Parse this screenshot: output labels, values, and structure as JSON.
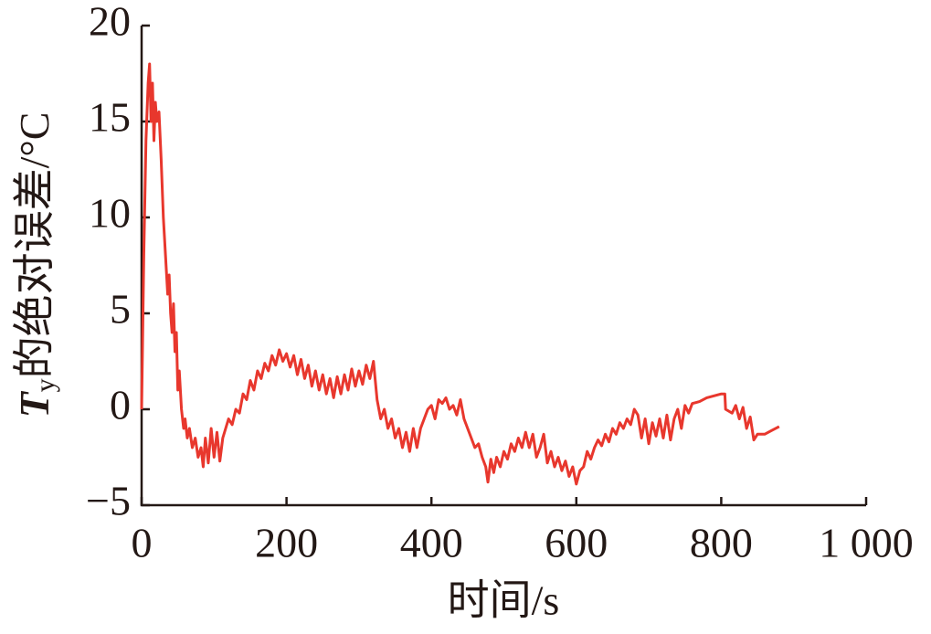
{
  "chart_data": {
    "type": "line",
    "xlabel": "时间/s",
    "ylabel": [
      "T",
      "y",
      "的绝对误差/°C"
    ],
    "xlim": [
      0,
      1000
    ],
    "ylim": [
      -5,
      20
    ],
    "xticks": [
      0,
      200,
      400,
      600,
      800,
      {
        "value": 1000,
        "label": "1 000"
      }
    ],
    "yticks": [
      {
        "value": -5,
        "label": "−5"
      },
      0,
      5,
      10,
      15,
      20
    ],
    "x": [
      0,
      3,
      6,
      9,
      11,
      13,
      15,
      17,
      19,
      21,
      24,
      27,
      30,
      33,
      36,
      38,
      40,
      42,
      44,
      46,
      48,
      50,
      52,
      55,
      58,
      60,
      63,
      66,
      70,
      74,
      78,
      82,
      85,
      88,
      92,
      96,
      100,
      104,
      108,
      112,
      116,
      120,
      125,
      130,
      135,
      140,
      145,
      150,
      155,
      160,
      165,
      170,
      175,
      180,
      185,
      190,
      195,
      200,
      205,
      210,
      215,
      220,
      225,
      230,
      235,
      240,
      245,
      250,
      255,
      260,
      265,
      270,
      275,
      280,
      285,
      290,
      295,
      300,
      305,
      310,
      315,
      320,
      325,
      330,
      335,
      340,
      345,
      350,
      355,
      360,
      365,
      370,
      375,
      380,
      385,
      390,
      395,
      400,
      405,
      410,
      415,
      420,
      425,
      430,
      435,
      440,
      445,
      450,
      455,
      460,
      465,
      470,
      475,
      478,
      482,
      486,
      490,
      495,
      500,
      505,
      510,
      515,
      520,
      525,
      530,
      535,
      540,
      545,
      550,
      555,
      560,
      565,
      570,
      575,
      580,
      585,
      590,
      595,
      600,
      605,
      610,
      615,
      620,
      625,
      630,
      635,
      640,
      645,
      650,
      655,
      660,
      665,
      670,
      675,
      680,
      685,
      690,
      695,
      700,
      705,
      710,
      715,
      720,
      725,
      730,
      735,
      740,
      745,
      750,
      755,
      760,
      770,
      780,
      790,
      800,
      805,
      806,
      815,
      820,
      825,
      830,
      835,
      840,
      845,
      850,
      860,
      870,
      880
    ],
    "series": [
      {
        "name": "T_y",
        "color": "#e8372d",
        "values": [
          0,
          8,
          14,
          17,
          18,
          15,
          17,
          14,
          16,
          15,
          15.5,
          13,
          10,
          8,
          6,
          7,
          5,
          4,
          5.5,
          3,
          4,
          1,
          2,
          0,
          -1,
          -0.5,
          -1.5,
          -1,
          -2,
          -1.5,
          -2.5,
          -2,
          -3,
          -1.5,
          -2.8,
          -1,
          -2.5,
          -1.2,
          -2.7,
          -1.5,
          -1,
          -0.5,
          -0.8,
          0,
          -0.2,
          0.8,
          0.5,
          1.5,
          1,
          2,
          1.6,
          2.4,
          2,
          2.8,
          2.3,
          3.1,
          2.5,
          2.9,
          2.2,
          2.8,
          1.8,
          2.6,
          1.6,
          2.3,
          1.2,
          2,
          1,
          1.8,
          0.8,
          1.6,
          0.6,
          1.7,
          0.8,
          1.8,
          1,
          2.1,
          1.2,
          2,
          1.3,
          2.3,
          1.6,
          2.5,
          0.5,
          -0.5,
          0,
          -1,
          -0.5,
          -1.5,
          -1,
          -2,
          -1.2,
          -2.2,
          -1,
          -2,
          -1,
          -0.5,
          0,
          0.2,
          -0.5,
          0.5,
          0.3,
          0.6,
          0,
          0.2,
          -0.3,
          0.5,
          -0.5,
          -1,
          -1.5,
          -2,
          -1.8,
          -2.5,
          -3,
          -3.8,
          -2.6,
          -3.3,
          -2.5,
          -3,
          -2.2,
          -2.6,
          -1.8,
          -2.2,
          -1.5,
          -2,
          -1.2,
          -2,
          -1.3,
          -2.5,
          -2,
          -1.3,
          -2.8,
          -2.2,
          -3,
          -2.5,
          -3.2,
          -2.7,
          -3.5,
          -3,
          -3.9,
          -3.2,
          -3,
          -2.2,
          -2.6,
          -2,
          -1.6,
          -1.9,
          -1.3,
          -1.7,
          -1,
          -1.3,
          -0.7,
          -1,
          -0.5,
          -0.8,
          0,
          -0.3,
          -1.5,
          -0.5,
          -1.8,
          -0.7,
          -1.4,
          -0.5,
          -1.5,
          -0.3,
          -1.6,
          -0.5,
          0,
          -1,
          0.2,
          -0.2,
          0.3,
          0.4,
          0.6,
          0.7,
          0.8,
          0.8,
          0,
          -0.2,
          0.2,
          -0.5,
          0.1,
          -1,
          -0.4,
          -1.6,
          -1.3,
          -1.3,
          -1.1,
          -0.9
        ]
      }
    ]
  }
}
